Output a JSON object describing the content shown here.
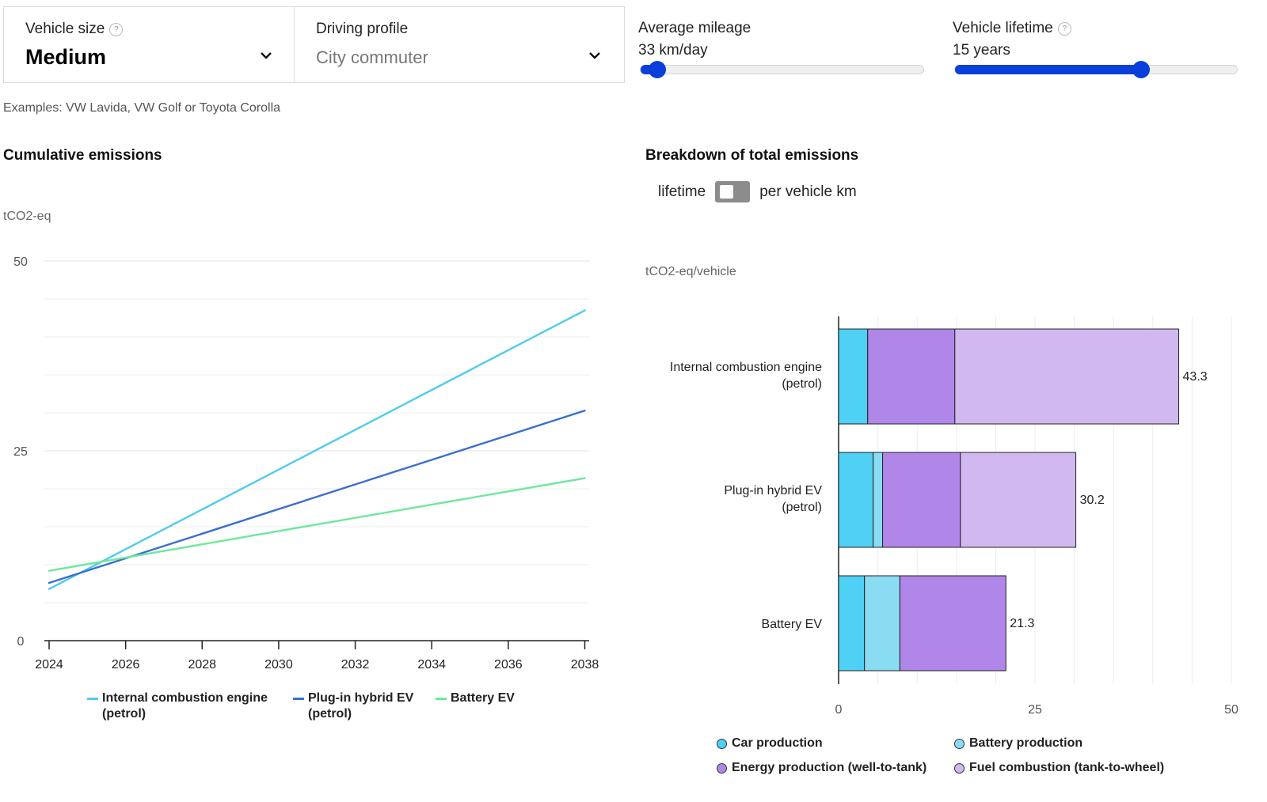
{
  "controls": {
    "vehicle_size": {
      "label": "Vehicle size",
      "help": "?",
      "value": "Medium"
    },
    "driving_profile": {
      "label": "Driving profile",
      "value": "City commuter"
    },
    "average_mileage": {
      "label": "Average mileage",
      "value": "33 km/day",
      "fraction": 0.06
    },
    "vehicle_lifetime": {
      "label": "Vehicle lifetime",
      "help": "?",
      "value": "15 years",
      "fraction": 0.66
    },
    "examples": "Examples: VW Lavida, VW Golf or Toyota Corolla"
  },
  "left_chart": {
    "title": "Cumulative emissions",
    "unit": "tCO2-eq"
  },
  "right_chart": {
    "title": "Breakdown of total emissions",
    "toggle_left": "lifetime",
    "toggle_right": "per vehicle km",
    "unit": "tCO2-eq/vehicle"
  },
  "colors": {
    "accent": "#0a3fdc",
    "ice_line": "#4fcbee",
    "phev_line": "#3a6fcf",
    "bev_line": "#6ee89a",
    "car_production": "#4fd0f5",
    "battery_production": "#8adcf2",
    "energy_production": "#b086e8",
    "fuel_combustion": "#d1b8f0"
  },
  "chart_data": [
    {
      "type": "line",
      "title": "Cumulative emissions",
      "ylabel": "tCO2-eq",
      "x": [
        2024,
        2038
      ],
      "xticks": [
        "2024",
        "2026",
        "2028",
        "2030",
        "2032",
        "2034",
        "2036",
        "2038"
      ],
      "yticks": [
        "0",
        "25",
        "50"
      ],
      "xlim": [
        2024,
        2038.5
      ],
      "ylim": [
        0,
        50
      ],
      "series": [
        {
          "name": "Internal combustion engine (petrol)",
          "name_line1": "Internal combustion engine",
          "name_line2": "(petrol)",
          "color": "#4fcbee",
          "values": [
            6.8,
            43.5
          ]
        },
        {
          "name": "Plug-in hybrid EV (petrol)",
          "name_line1": "Plug-in hybrid EV",
          "name_line2": "(petrol)",
          "color": "#3a6fcf",
          "values": [
            7.6,
            30.3
          ]
        },
        {
          "name": "Battery EV",
          "name_line1": "Battery EV",
          "name_line2": "",
          "color": "#6ee89a",
          "values": [
            9.2,
            21.4
          ]
        }
      ]
    },
    {
      "type": "bar",
      "orientation": "horizontal",
      "stacked": true,
      "title": "Breakdown of total emissions",
      "xlabel": "tCO2-eq/vehicle",
      "xlim": [
        0,
        50
      ],
      "xticks": [
        "0",
        "25",
        "50"
      ],
      "categories": [
        "Internal combustion engine (petrol)",
        "Plug-in hybrid EV (petrol)",
        "Battery EV"
      ],
      "category_lines": [
        [
          "Internal combustion engine",
          "(petrol)"
        ],
        [
          "Plug-in hybrid EV",
          "(petrol)"
        ],
        [
          "Battery EV"
        ]
      ],
      "totals": [
        43.3,
        30.2,
        21.3
      ],
      "total_labels": [
        "43.3",
        "30.2",
        "21.3"
      ],
      "series": [
        {
          "name": "Car production",
          "color": "#4fd0f5",
          "values": [
            3.7,
            4.4,
            3.3
          ]
        },
        {
          "name": "Battery production",
          "color": "#8adcf2",
          "values": [
            0,
            1.2,
            4.5
          ]
        },
        {
          "name": "Energy production (well-to-tank)",
          "color": "#b086e8",
          "values": [
            11.1,
            9.9,
            13.5
          ]
        },
        {
          "name": "Fuel combustion (tank-to-wheel)",
          "color": "#d1b8f0",
          "values": [
            28.5,
            14.7,
            0
          ]
        }
      ]
    }
  ]
}
